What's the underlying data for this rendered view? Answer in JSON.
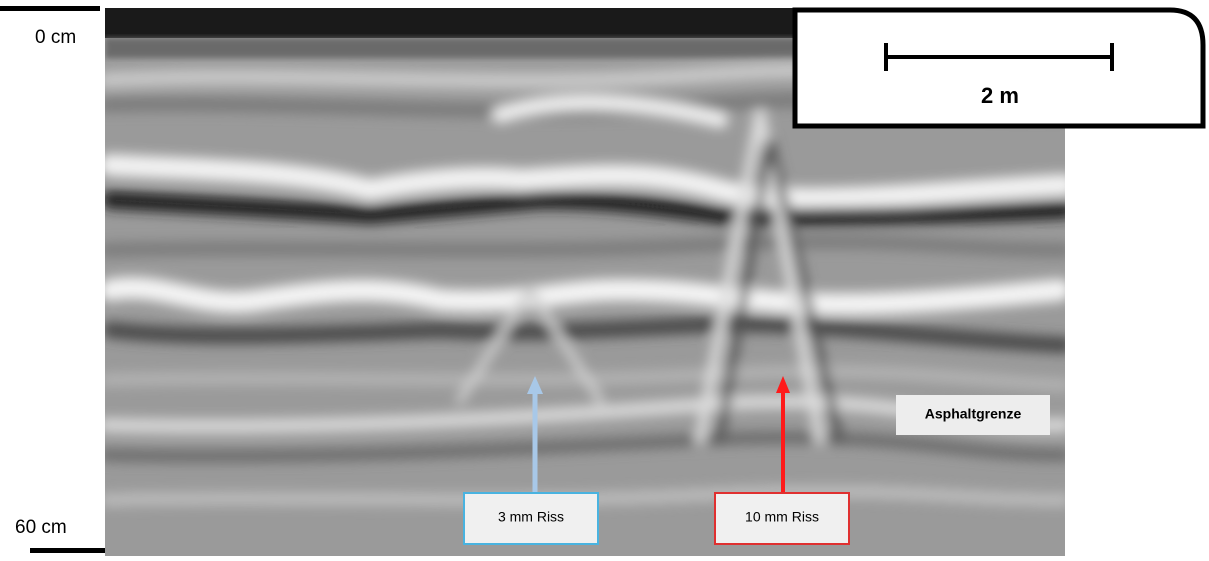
{
  "depth_axis": {
    "top": "0 cm",
    "bottom": "60 cm"
  },
  "scale_bar": {
    "label": "2 m"
  },
  "annotations": [
    {
      "label": "Asphaltgrenze"
    },
    {
      "label": "3 mm Riss"
    },
    {
      "label": "10 mm Riss"
    }
  ]
}
